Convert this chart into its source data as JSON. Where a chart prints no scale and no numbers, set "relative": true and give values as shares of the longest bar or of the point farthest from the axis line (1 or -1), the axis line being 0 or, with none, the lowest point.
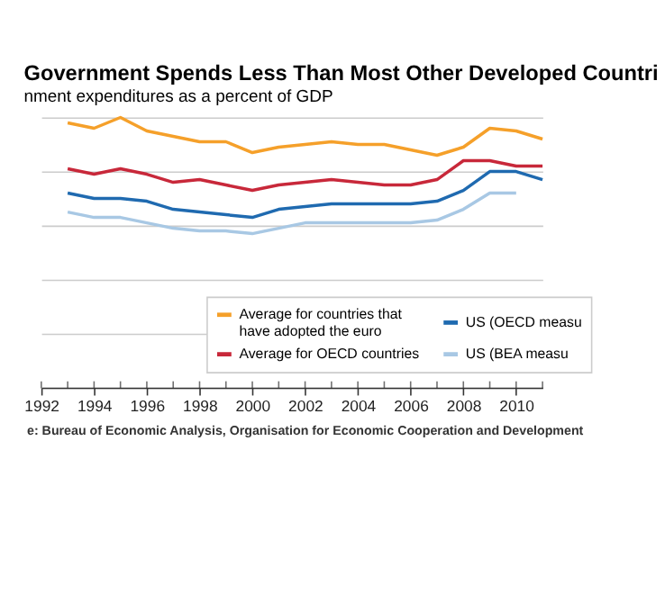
{
  "chart_data": {
    "type": "line",
    "title": "Government Spends Less Than Most Other Developed Countri",
    "subtitle": "nment expenditures as a percent of GDP",
    "x": [
      1993,
      1994,
      1995,
      1996,
      1997,
      1998,
      1999,
      2000,
      2001,
      2002,
      2003,
      2004,
      2005,
      2006,
      2007,
      2008,
      2009,
      2010,
      2011
    ],
    "xlim": [
      1992,
      2011
    ],
    "xticks": [
      1992,
      1994,
      1996,
      1998,
      2000,
      2002,
      2004,
      2006,
      2008,
      2010
    ],
    "relative": true,
    "grid": "y",
    "legend": "bottom right",
    "series": [
      {
        "name": "Average for countries that\nhave adopted the euro",
        "color": "#f5a02a",
        "values": [
          0.98,
          0.96,
          1.0,
          0.95,
          0.93,
          0.91,
          0.91,
          0.87,
          0.89,
          0.9,
          0.91,
          0.9,
          0.9,
          0.88,
          0.86,
          0.89,
          0.96,
          0.95,
          0.92
        ]
      },
      {
        "name": "Average for OECD countries",
        "color": "#c8283a",
        "values": [
          0.81,
          0.79,
          0.81,
          0.79,
          0.76,
          0.77,
          0.75,
          0.73,
          0.75,
          0.76,
          0.77,
          0.76,
          0.75,
          0.75,
          0.77,
          0.84,
          0.84,
          0.82,
          0.82
        ]
      },
      {
        "name": "US (OECD measu",
        "color": "#1f6ab0",
        "values": [
          0.72,
          0.7,
          0.7,
          0.69,
          0.66,
          0.65,
          0.64,
          0.63,
          0.66,
          0.67,
          0.68,
          0.68,
          0.68,
          0.68,
          0.69,
          0.73,
          0.8,
          0.8,
          0.77
        ]
      },
      {
        "name": "US (BEA measu",
        "color": "#a8c8e4",
        "values": [
          0.65,
          0.63,
          0.63,
          0.61,
          0.59,
          0.58,
          0.58,
          0.57,
          0.59,
          0.61,
          0.61,
          0.61,
          0.61,
          0.61,
          0.62,
          0.66,
          0.72,
          0.72,
          null
        ]
      }
    ],
    "annotations": [
      "e: Bureau of Economic Analysis, Organisation for Economic Cooperation and Development"
    ]
  }
}
